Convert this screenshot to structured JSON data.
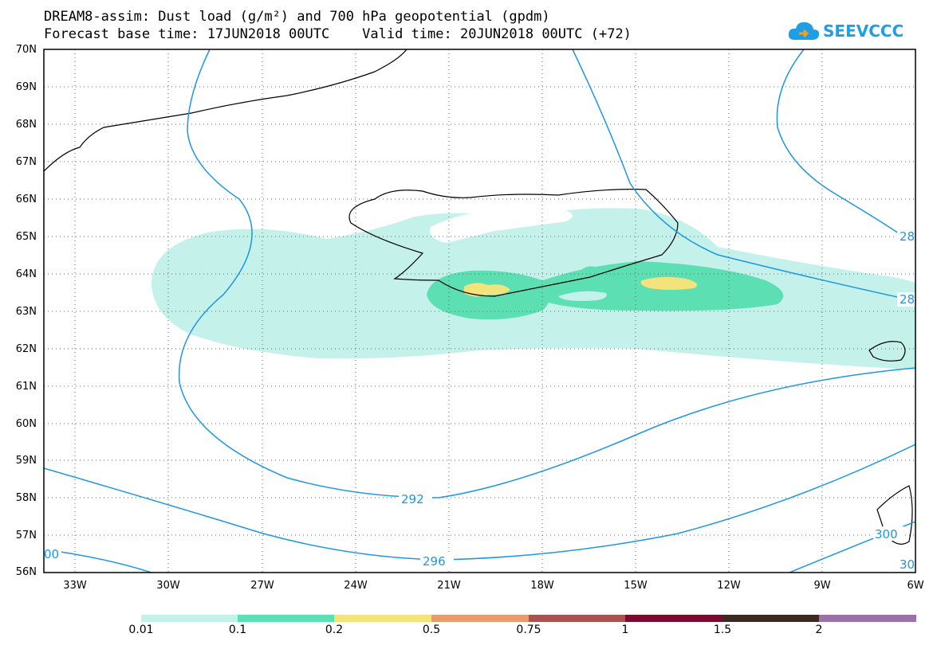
{
  "header": {
    "line1": "DREAM8-assim: Dust load (g/m²) and 700 hPa geopotential (gpdm)",
    "line2": "Forecast base time: 17JUN2018 00UTC    Valid time: 20JUN2018 00UTC (+72)"
  },
  "logo": {
    "text": "SEEVCCC",
    "icon": "cloud-icon"
  },
  "map": {
    "lat_labels": [
      "70N",
      "69N",
      "68N",
      "67N",
      "66N",
      "65N",
      "64N",
      "63N",
      "62N",
      "61N",
      "60N",
      "59N",
      "58N",
      "57N",
      "56N"
    ],
    "lon_labels": [
      "33W",
      "30W",
      "27W",
      "24W",
      "21W",
      "18W",
      "15W",
      "12W",
      "9W",
      "6W"
    ],
    "contour_labels": [
      "28",
      "28",
      "292",
      "296",
      "300",
      "00",
      "30"
    ]
  },
  "colorbar": {
    "labels": [
      "0.01",
      "0.1",
      "0.2",
      "0.5",
      "0.75",
      "1",
      "1.5",
      "2"
    ],
    "colors": [
      "#c4f1ea",
      "#5ddfb4",
      "#f2e37c",
      "#e89a72",
      "#a8524f",
      "#7a0a2e",
      "#3c2a22",
      "#9b72a8"
    ]
  },
  "contour_color": "#1e96e6"
}
